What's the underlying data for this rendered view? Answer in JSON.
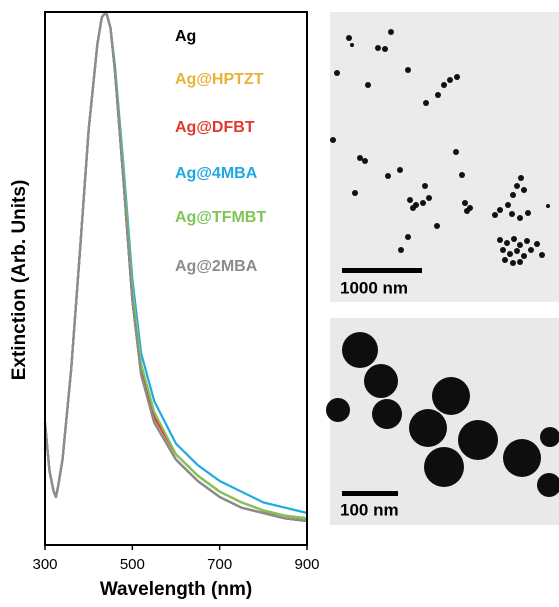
{
  "chart_data": {
    "type": "line",
    "x_label": "Wavelength (nm)",
    "y_label": "Extinction (Arb. Units)",
    "x": [
      300,
      310,
      320,
      325,
      330,
      340,
      360,
      380,
      400,
      420,
      430,
      440,
      450,
      460,
      480,
      500,
      520,
      550,
      600,
      650,
      700,
      750,
      800,
      850,
      900
    ],
    "series": [
      {
        "name": "Ag",
        "color": "#000000",
        "values": [
          0.23,
          0.14,
          0.1,
          0.09,
          0.11,
          0.16,
          0.33,
          0.55,
          0.78,
          0.94,
          0.99,
          1.0,
          0.97,
          0.89,
          0.68,
          0.46,
          0.32,
          0.23,
          0.16,
          0.12,
          0.09,
          0.07,
          0.06,
          0.05,
          0.045
        ]
      },
      {
        "name": "Ag@HPTZT",
        "color": "#e8b23a",
        "values": [
          0.23,
          0.14,
          0.1,
          0.09,
          0.11,
          0.16,
          0.33,
          0.55,
          0.78,
          0.94,
          0.99,
          1.0,
          0.97,
          0.89,
          0.69,
          0.47,
          0.33,
          0.24,
          0.17,
          0.13,
          0.1,
          0.08,
          0.065,
          0.055,
          0.05
        ]
      },
      {
        "name": "Ag@DFBT",
        "color": "#e2382e",
        "values": [
          0.23,
          0.14,
          0.1,
          0.09,
          0.11,
          0.16,
          0.33,
          0.55,
          0.78,
          0.94,
          0.99,
          1.0,
          0.97,
          0.89,
          0.69,
          0.47,
          0.33,
          0.24,
          0.17,
          0.13,
          0.1,
          0.08,
          0.065,
          0.055,
          0.05
        ]
      },
      {
        "name": "Ag@4MBA",
        "color": "#1ea9e1",
        "values": [
          0.23,
          0.14,
          0.1,
          0.09,
          0.11,
          0.16,
          0.33,
          0.55,
          0.78,
          0.94,
          0.99,
          1.0,
          0.97,
          0.9,
          0.71,
          0.5,
          0.36,
          0.27,
          0.19,
          0.15,
          0.12,
          0.1,
          0.08,
          0.07,
          0.06
        ]
      },
      {
        "name": "Ag@TFMBT",
        "color": "#7dc657",
        "values": [
          0.23,
          0.14,
          0.1,
          0.09,
          0.11,
          0.16,
          0.33,
          0.55,
          0.78,
          0.94,
          0.99,
          1.0,
          0.97,
          0.89,
          0.7,
          0.48,
          0.34,
          0.25,
          0.17,
          0.13,
          0.1,
          0.08,
          0.065,
          0.055,
          0.05
        ]
      },
      {
        "name": "Ag@2MBA",
        "color": "#8c8c8c",
        "values": [
          0.23,
          0.14,
          0.1,
          0.09,
          0.11,
          0.16,
          0.33,
          0.55,
          0.78,
          0.94,
          0.99,
          1.0,
          0.97,
          0.89,
          0.68,
          0.46,
          0.32,
          0.23,
          0.16,
          0.12,
          0.09,
          0.07,
          0.06,
          0.05,
          0.045
        ]
      }
    ],
    "xlim": [
      300,
      900
    ],
    "xticks": [
      300,
      500,
      700,
      900
    ],
    "ylim": [
      0,
      1
    ]
  },
  "image_panels": [
    {
      "scale_bar": "1000 nm"
    },
    {
      "scale_bar": "100 nm"
    }
  ]
}
